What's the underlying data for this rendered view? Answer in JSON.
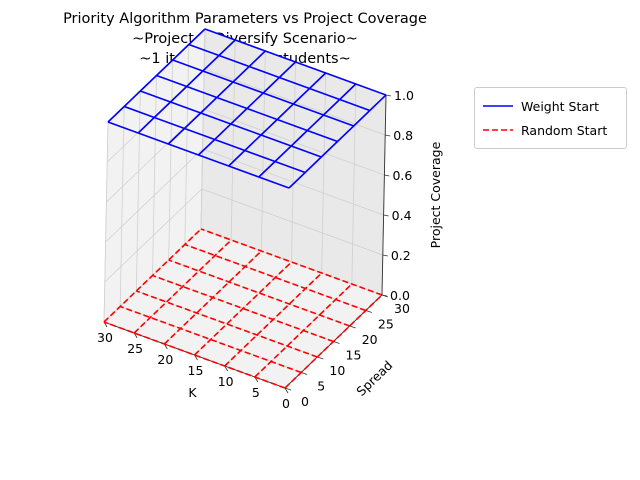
{
  "chart_data": {
    "type": "surface-wireframe-3d",
    "title_lines": [
      "Priority Algorithm Parameters vs Project Coverage",
      "~Project & Diversify Scenario~",
      "~1 iterations, 120 students~"
    ],
    "xlabel": "K",
    "ylabel": "Spread",
    "zlabel": "Project Coverage",
    "x_ticks": [
      "30",
      "25",
      "20",
      "15",
      "10",
      "5",
      "0"
    ],
    "y_ticks": [
      "0",
      "5",
      "10",
      "15",
      "20",
      "25",
      "30"
    ],
    "z_ticks": [
      "0.0",
      "0.2",
      "0.4",
      "0.6",
      "0.8",
      "1.0"
    ],
    "xlim": [
      0,
      30
    ],
    "ylim": [
      0,
      30
    ],
    "zlim": [
      0,
      1
    ],
    "grid_values": [
      0,
      5,
      10,
      15,
      20,
      25,
      30
    ],
    "legend_position": "upper-right outside",
    "series": [
      {
        "name": "Weight Start",
        "color": "#0000ff",
        "dash": "solid",
        "z_constant": 1.0
      },
      {
        "name": "Random Start",
        "color": "#ff0000",
        "dash": "dashed",
        "z_constant": 0.0
      }
    ]
  }
}
